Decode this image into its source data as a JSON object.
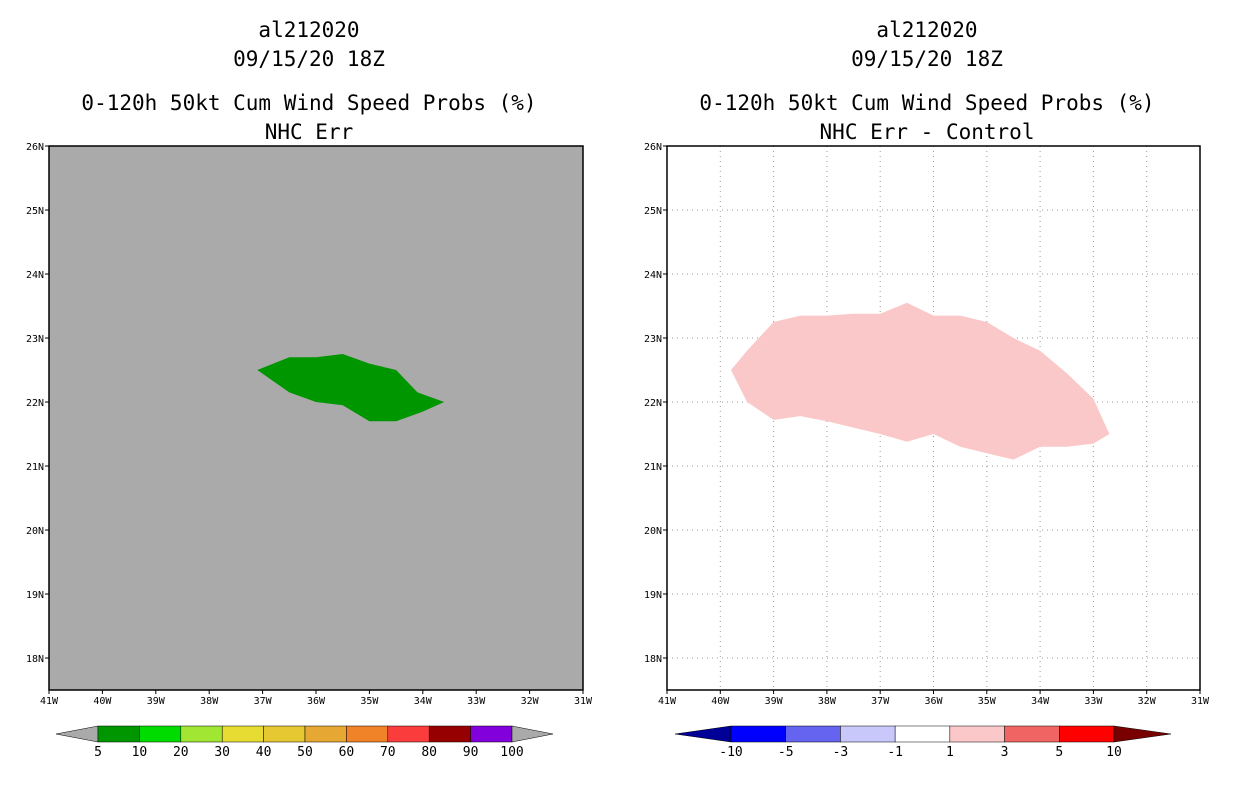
{
  "chart_data": [
    {
      "type": "filled-contour-map",
      "storm_id": "al212020",
      "datetime": "09/15/20 18Z",
      "title": "0-120h 50kt Cum Wind Speed Probs (%)",
      "subtitle": "NHC Err",
      "xlim": [
        -41,
        -31
      ],
      "ylim": [
        17.5,
        26
      ],
      "xticks": [
        "41W",
        "40W",
        "39W",
        "38W",
        "37W",
        "36W",
        "35W",
        "34W",
        "33W",
        "32W",
        "31W"
      ],
      "yticks": [
        "18N",
        "19N",
        "20N",
        "21N",
        "22N",
        "23N",
        "24N",
        "25N",
        "26N"
      ],
      "grid": false,
      "background_color": "#aaaaaa",
      "contours": [
        {
          "level": "5-10",
          "color": "#009600",
          "lon": [
            -37.1,
            -36.5,
            -36.0,
            -35.5,
            -35.0,
            -34.5,
            -34.1,
            -33.6,
            -34.0,
            -34.5,
            -35.0,
            -35.5,
            -36.0,
            -36.5,
            -37.1
          ],
          "lat": [
            22.5,
            22.7,
            22.7,
            22.75,
            22.6,
            22.5,
            22.15,
            22.0,
            21.85,
            21.7,
            21.7,
            21.95,
            22.0,
            22.15,
            22.5
          ]
        }
      ],
      "colorbar": {
        "labels": [
          "5",
          "10",
          "20",
          "30",
          "40",
          "50",
          "60",
          "70",
          "80",
          "90",
          "100"
        ],
        "colors": [
          "#aaaaaa",
          "#009600",
          "#00dc00",
          "#a0e632",
          "#e6dc32",
          "#e6c832",
          "#e6a832",
          "#f08228",
          "#fa3c3c",
          "#960000",
          "#8200dc",
          "#aaaaaa"
        ]
      }
    },
    {
      "type": "filled-contour-map",
      "storm_id": "al212020",
      "datetime": "09/15/20 18Z",
      "title": "0-120h 50kt Cum Wind Speed Probs (%)",
      "subtitle": "NHC Err - Control",
      "xlim": [
        -41,
        -31
      ],
      "ylim": [
        17.5,
        26
      ],
      "xticks": [
        "41W",
        "40W",
        "39W",
        "38W",
        "37W",
        "36W",
        "35W",
        "34W",
        "33W",
        "32W",
        "31W"
      ],
      "yticks": [
        "18N",
        "19N",
        "20N",
        "21N",
        "22N",
        "23N",
        "24N",
        "25N",
        "26N"
      ],
      "grid": true,
      "background_color": "#ffffff",
      "contours": [
        {
          "level": "1-3",
          "color": "#fac8c8",
          "lon": [
            -39.8,
            -39.5,
            -39.0,
            -38.5,
            -38.0,
            -37.5,
            -37.0,
            -36.5,
            -36.0,
            -35.5,
            -35.0,
            -34.5,
            -34.0,
            -33.5,
            -33.0,
            -32.7,
            -33.0,
            -33.5,
            -34.0,
            -34.5,
            -35.0,
            -35.5,
            -36.0,
            -36.5,
            -37.0,
            -37.5,
            -38.0,
            -38.5,
            -39.0,
            -39.5,
            -39.8
          ],
          "lat": [
            22.5,
            22.8,
            23.25,
            23.35,
            23.35,
            23.38,
            23.38,
            23.55,
            23.35,
            23.35,
            23.25,
            23.0,
            22.8,
            22.45,
            22.05,
            21.5,
            21.35,
            21.3,
            21.3,
            21.1,
            21.2,
            21.3,
            21.5,
            21.38,
            21.5,
            21.6,
            21.7,
            21.78,
            21.72,
            22.0,
            22.5
          ]
        }
      ],
      "colorbar": {
        "labels": [
          "-10",
          "-5",
          "-3",
          "-1",
          "1",
          "3",
          "5",
          "10"
        ],
        "colors": [
          "#000096",
          "#0000ff",
          "#6464f0",
          "#c8c8fa",
          "#ffffff",
          "#fac8c8",
          "#f06464",
          "#ff0000",
          "#780000"
        ]
      }
    }
  ]
}
